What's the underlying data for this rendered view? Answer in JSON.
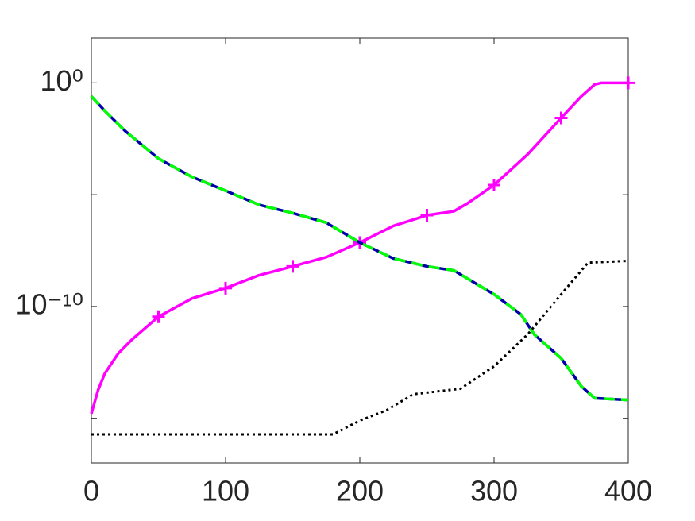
{
  "chart_data": {
    "type": "line",
    "xlim": [
      0,
      400
    ],
    "xticks": [
      0,
      100,
      200,
      300,
      400
    ],
    "ylim": [
      1e-17,
      100
    ],
    "yscale": "log",
    "yticks": [
      {
        "value": 1,
        "label": "10⁰"
      },
      {
        "value": 1e-05,
        "label": null
      },
      {
        "value": 1e-10,
        "label": "10⁻¹⁰"
      },
      {
        "value": 1e-15,
        "label": null
      }
    ],
    "grid": false,
    "series": [
      {
        "color": "#ff00ff",
        "style": "solid",
        "x": [
          0,
          5,
          10,
          20,
          30,
          50,
          75,
          100,
          125,
          150,
          175,
          200,
          225,
          250,
          270,
          280,
          300,
          325,
          350,
          365,
          375,
          380,
          400
        ],
        "values": [
          1.6e-15,
          1.8e-14,
          1e-13,
          7.9e-13,
          3.2e-12,
          3.5e-11,
          2.3e-10,
          6.6e-10,
          2.5e-09,
          6.2e-09,
          1.6e-08,
          7.2e-08,
          4e-07,
          1.2e-06,
          1.8e-06,
          4e-06,
          2.7e-05,
          0.00063,
          0.027,
          0.25,
          0.85,
          1,
          1
        ]
      },
      {
        "color": "#ff00ff",
        "style": "markers",
        "x": [
          50,
          100,
          150,
          200,
          250,
          300,
          350,
          400
        ],
        "values": [
          3.5e-11,
          6.6e-10,
          6.2e-09,
          7.2e-08,
          1.2e-06,
          2.7e-05,
          0.027,
          1
        ]
      },
      {
        "color": "#0000aa",
        "style": "solid",
        "x": [
          0,
          10,
          25,
          50,
          75,
          100,
          125,
          150,
          175,
          200,
          225,
          250,
          270,
          300,
          320,
          330,
          350,
          365,
          375,
          400
        ],
        "values": [
          0.25,
          0.056,
          0.0072,
          0.00041,
          6.2e-05,
          1.5e-05,
          3.5e-06,
          1.5e-06,
          5.6e-07,
          7.2e-08,
          1.4e-08,
          6.2e-09,
          4.1e-09,
          3.5e-10,
          4.4e-11,
          5.6e-12,
          4.8e-13,
          2.7e-14,
          7.9e-15,
          6.6e-15
        ]
      },
      {
        "color": "#00ff00",
        "style": "dashed",
        "x": [
          0,
          10,
          25,
          50,
          75,
          100,
          125,
          150,
          175,
          200,
          225,
          250,
          270,
          300,
          320,
          330,
          350,
          365,
          375,
          400
        ],
        "values": [
          0.25,
          0.056,
          0.0072,
          0.00041,
          6.2e-05,
          1.5e-05,
          3.5e-06,
          1.5e-06,
          5.6e-07,
          7.2e-08,
          1.4e-08,
          6.2e-09,
          4.1e-09,
          3.5e-10,
          4.4e-11,
          5.6e-12,
          4.8e-13,
          2.7e-14,
          7.9e-15,
          6.6e-15
        ]
      },
      {
        "color": "#000000",
        "style": "dotted",
        "x": [
          0,
          180,
          200,
          220,
          240,
          250,
          275,
          300,
          325,
          350,
          370,
          400
        ],
        "values": [
          1.9e-16,
          1.9e-16,
          7.9e-16,
          2.3e-15,
          1.2e-14,
          1.4e-14,
          2.1e-14,
          2.1e-13,
          5.6e-12,
          3.5e-10,
          9.1e-09,
          1.1e-08
        ]
      }
    ]
  }
}
